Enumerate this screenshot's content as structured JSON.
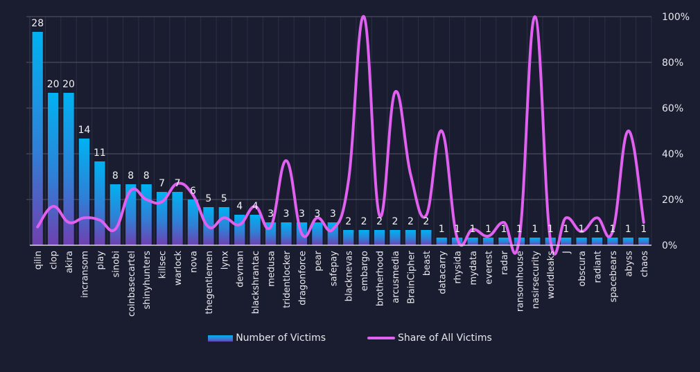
{
  "chart_data": {
    "type": "bar",
    "title": "",
    "xlabel": "",
    "ylabel": "",
    "categories": [
      "qilin",
      "clop",
      "akira",
      "incransom",
      "play",
      "sinobi",
      "coinbasecartel",
      "shinyhunters",
      "killsec",
      "warlock",
      "nova",
      "thegentlemen",
      "lynx",
      "devman",
      "blackshrantac",
      "medusa",
      "tridentlocker",
      "dragonforce",
      "pear",
      "safepay",
      "blacknevas",
      "embargo",
      "brotherhood",
      "arcusmedia",
      "BrainCipher",
      "beast",
      "datacarry",
      "rhysida",
      "mydata",
      "everest",
      "radar",
      "ransomhouse",
      "nasirsecurity",
      "worldleaks",
      "J",
      "obscura",
      "radiant",
      "spacebears",
      "abyss",
      "chaos"
    ],
    "series": [
      {
        "name": "Number of Victims",
        "type": "bar",
        "axis": "left",
        "values": [
          28,
          20,
          20,
          14,
          11,
          8,
          8,
          8,
          7,
          7,
          6,
          5,
          5,
          4,
          4,
          3,
          3,
          3,
          3,
          3,
          2,
          2,
          2,
          2,
          2,
          2,
          1,
          1,
          1,
          1,
          1,
          1,
          1,
          1,
          1,
          1,
          1,
          1,
          1,
          1
        ]
      },
      {
        "name": "Share of All Victims",
        "type": "line",
        "axis": "right",
        "unit": "%",
        "values": [
          8,
          17,
          10,
          12,
          11,
          7,
          24,
          20,
          19,
          27,
          22,
          8,
          12,
          9,
          17,
          8,
          37,
          5,
          12,
          7,
          28,
          100,
          13,
          67,
          31,
          13,
          50,
          3,
          7,
          4,
          10,
          3,
          100,
          2,
          12,
          6,
          12,
          6,
          50,
          10
        ]
      }
    ],
    "ylim_left": [
      0,
      30
    ],
    "yticks_left_count": 6,
    "ylim_right": [
      0,
      100
    ],
    "yticks_right": [
      "0%",
      "20%",
      "40%",
      "60%",
      "80%",
      "100%"
    ],
    "grid": true,
    "data_labels": true,
    "legend": {
      "position": "bottom",
      "entries": [
        "Number of Victims",
        "Share of All Victims"
      ]
    },
    "colors": {
      "background": "#1a1d30",
      "bar_top": "#00b0f0",
      "bar_bottom": "#7040b0",
      "line": "#e060f0",
      "grid": "#4a4c5c",
      "text": "#e8e8ee"
    }
  }
}
